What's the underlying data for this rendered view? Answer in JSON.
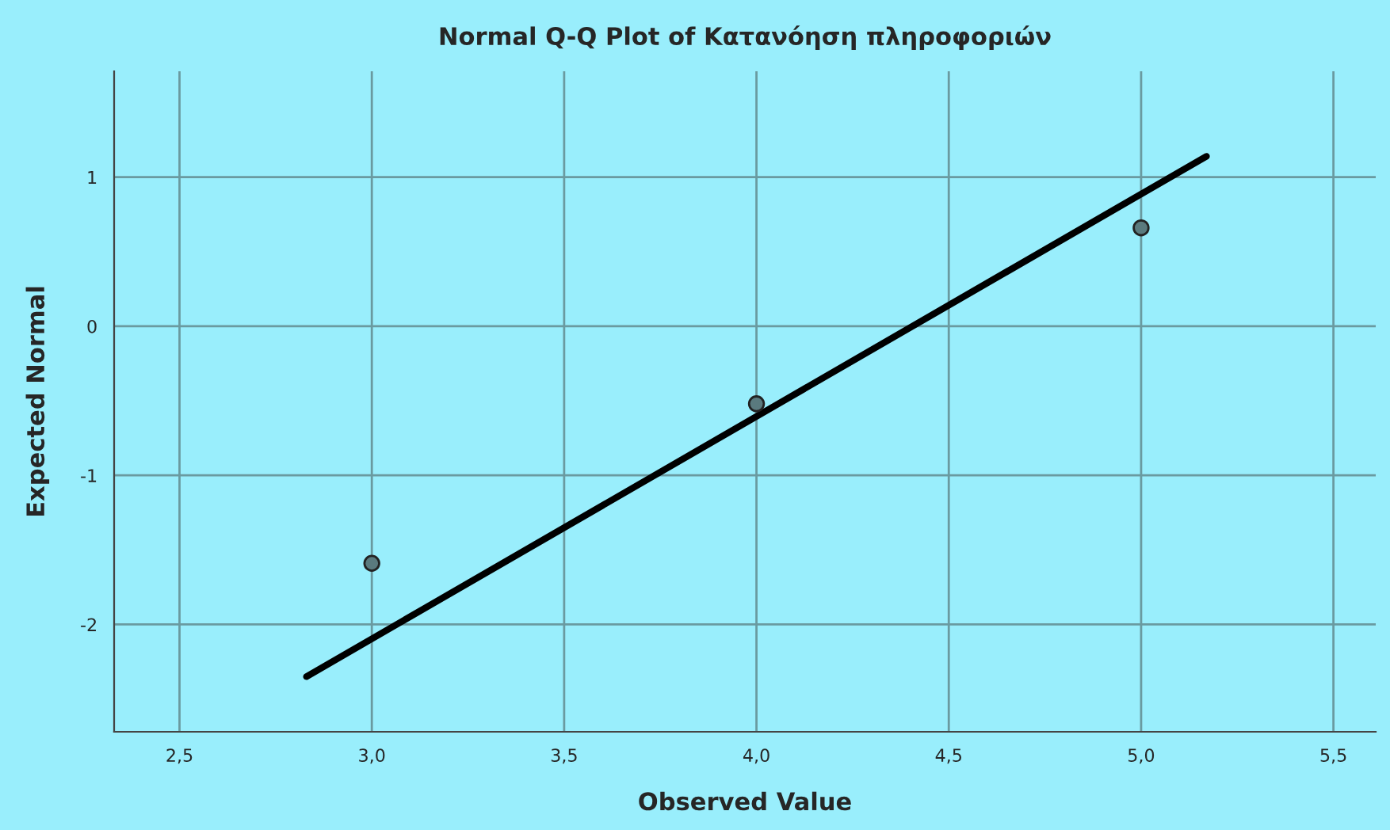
{
  "chart_data": {
    "type": "scatter",
    "title": "Normal Q-Q Plot of Κατανόηση πληροφοριών",
    "xlabel": "Observed Value",
    "ylabel": "Expected Normal",
    "series": [
      {
        "color": "#5a7a7e",
        "x": [
          3.0,
          4.0,
          5.0
        ],
        "values": [
          -1.59,
          -0.52,
          0.66
        ],
        "marker": "circle"
      },
      {
        "type": "line",
        "color": "#000000",
        "x": [
          2.83,
          5.17
        ],
        "values": [
          -2.35,
          1.14
        ],
        "marker": "none",
        "line_style": "solid"
      }
    ],
    "xlim": [
      2.33,
      5.61
    ],
    "ylim": [
      -2.72,
      1.71
    ],
    "xticks": [
      {
        "value": 2.5,
        "label": "2,5"
      },
      {
        "value": 3.0,
        "label": "3,0"
      },
      {
        "value": 3.5,
        "label": "3,5"
      },
      {
        "value": 4.0,
        "label": "4,0"
      },
      {
        "value": 4.5,
        "label": "4,5"
      },
      {
        "value": 5.0,
        "label": "5,0"
      },
      {
        "value": 5.5,
        "label": "5,5"
      }
    ],
    "yticks": [
      -2,
      -1,
      0,
      1
    ],
    "grid": true
  }
}
